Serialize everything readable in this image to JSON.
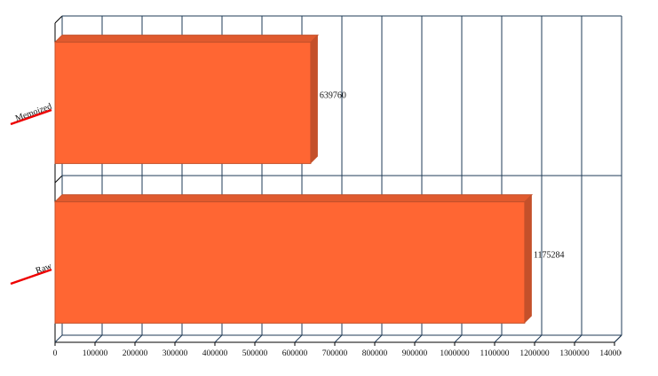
{
  "chart_data": {
    "type": "bar",
    "orientation": "horizontal",
    "categories": [
      "Memoized",
      "Raw"
    ],
    "values": [
      639760,
      1175284
    ],
    "color": "#ff6633",
    "xlim": [
      0,
      1400000
    ],
    "xticks": [
      0,
      100000,
      200000,
      300000,
      400000,
      500000,
      600000,
      700000,
      800000,
      900000,
      1000000,
      1100000,
      1200000,
      1300000,
      1400000
    ],
    "grid": true
  }
}
